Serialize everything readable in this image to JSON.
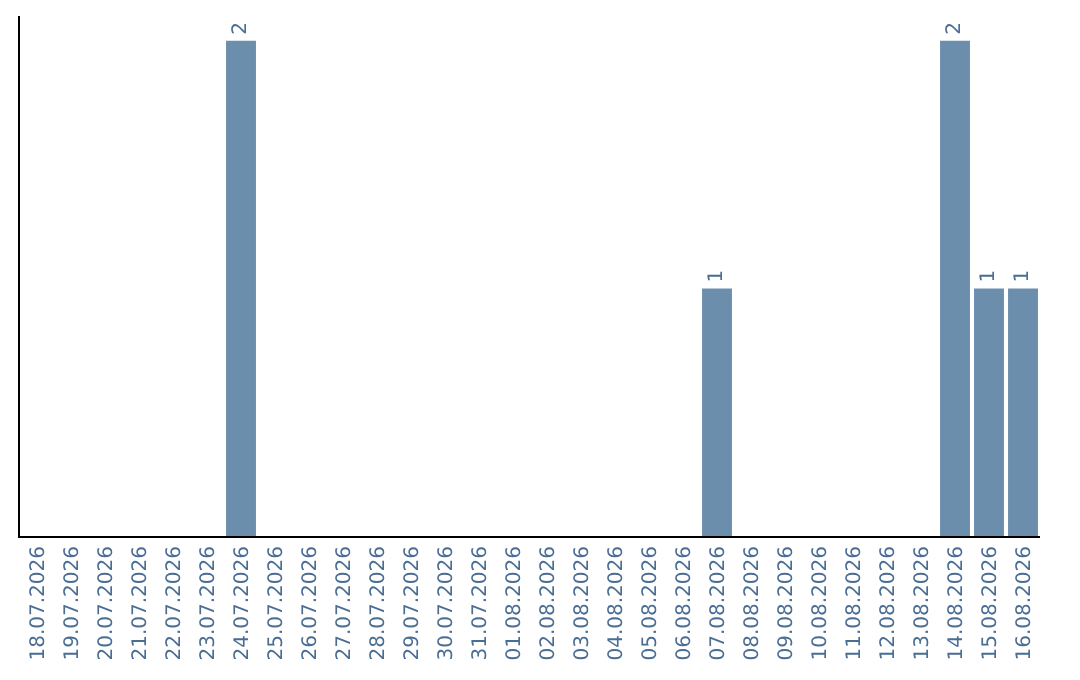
{
  "chart_data": {
    "type": "bar",
    "categories": [
      "18.07.2026",
      "19.07.2026",
      "20.07.2026",
      "21.07.2026",
      "22.07.2026",
      "23.07.2026",
      "24.07.2026",
      "25.07.2026",
      "26.07.2026",
      "27.07.2026",
      "28.07.2026",
      "29.07.2026",
      "30.07.2026",
      "31.07.2026",
      "01.08.2026",
      "02.08.2026",
      "03.08.2026",
      "04.08.2026",
      "05.08.2026",
      "06.08.2026",
      "07.08.2026",
      "08.08.2026",
      "09.08.2026",
      "10.08.2026",
      "11.08.2026",
      "12.08.2026",
      "13.08.2026",
      "14.08.2026",
      "15.08.2026",
      "16.08.2026"
    ],
    "values": [
      0,
      0,
      0,
      0,
      0,
      0,
      2,
      0,
      0,
      0,
      0,
      0,
      0,
      0,
      0,
      0,
      0,
      0,
      0,
      0,
      1,
      0,
      0,
      0,
      0,
      0,
      0,
      2,
      1,
      1
    ],
    "value_labels": [
      null,
      null,
      null,
      null,
      null,
      null,
      "2",
      null,
      null,
      null,
      null,
      null,
      null,
      null,
      null,
      null,
      null,
      null,
      null,
      null,
      "1",
      null,
      null,
      null,
      null,
      null,
      null,
      "2",
      "1",
      "1"
    ],
    "color": "#6c8ead",
    "tick_labels": "x"
  }
}
